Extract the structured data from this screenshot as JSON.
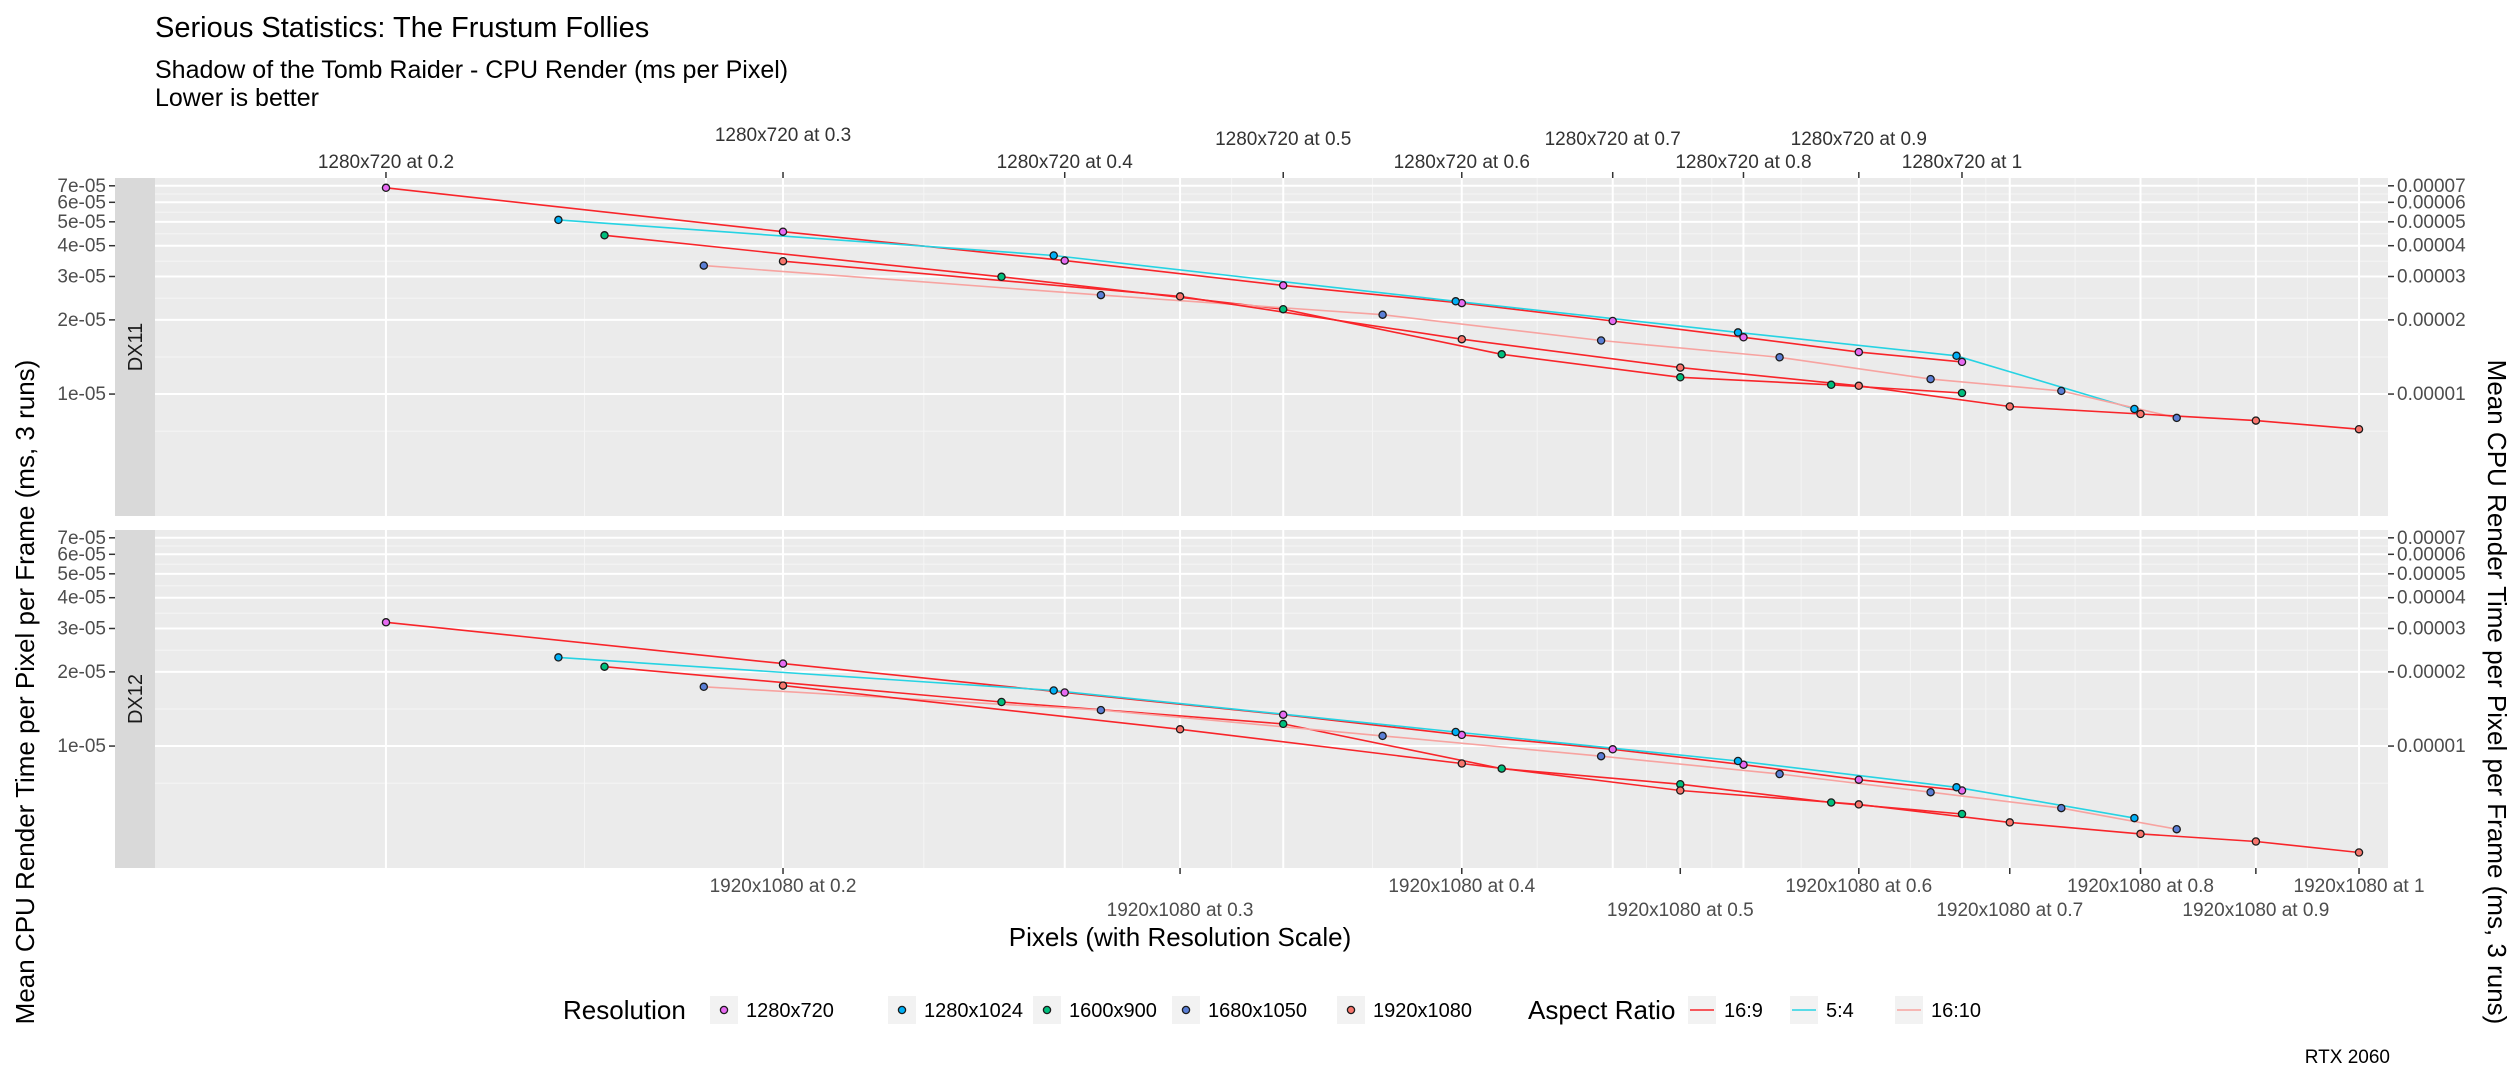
{
  "chart_data": {
    "type": "scatter",
    "title": "Serious Statistics: The Frustum Follies",
    "subtitle": [
      "Shadow of the Tomb Raider - CPU Render (ms per Pixel)",
      "Lower is better"
    ],
    "xlabel": "Pixels (with Resolution Scale)",
    "ylabel": "Mean CPU Render Time per Pixel per Frame (ms, 3 runs)",
    "ylabel_right": "Mean CPU Render Time per Pixel per Frame (ms, 3 runs)",
    "caption": "RTX 2060",
    "x_scale": "log",
    "y_scale": "log",
    "xlim": [
      23000,
      2200000
    ],
    "ylim": [
      3.2e-06,
      7.53e-05
    ],
    "y_ticks_left": [
      {
        "value": 7e-05,
        "label": "7e-05"
      },
      {
        "value": 6e-05,
        "label": "6e-05"
      },
      {
        "value": 5e-05,
        "label": "5e-05"
      },
      {
        "value": 4e-05,
        "label": "4e-05"
      },
      {
        "value": 3e-05,
        "label": "3e-05"
      },
      {
        "value": 2e-05,
        "label": "2e-05"
      },
      {
        "value": 1e-05,
        "label": "1e-05"
      }
    ],
    "y_ticks_right": [
      {
        "value": 7e-05,
        "label": "0.00007"
      },
      {
        "value": 6e-05,
        "label": "0.00006"
      },
      {
        "value": 5e-05,
        "label": "0.00005"
      },
      {
        "value": 4e-05,
        "label": "0.00004"
      },
      {
        "value": 3e-05,
        "label": "0.00003"
      },
      {
        "value": 2e-05,
        "label": "0.00002"
      },
      {
        "value": 1e-05,
        "label": "0.00001"
      }
    ],
    "x_ticks_top": [
      {
        "value": 36864,
        "label": "1280x720 at 0.2"
      },
      {
        "value": 82944,
        "label": "1280x720 at 0.3"
      },
      {
        "value": 147456,
        "label": "1280x720 at 0.4"
      },
      {
        "value": 230400,
        "label": "1280x720 at 0.5"
      },
      {
        "value": 331776,
        "label": "1280x720 at 0.6"
      },
      {
        "value": 451584,
        "label": "1280x720 at 0.7"
      },
      {
        "value": 589824,
        "label": "1280x720 at 0.8"
      },
      {
        "value": 746496,
        "label": "1280x720 at 0.9"
      },
      {
        "value": 921600,
        "label": "1280x720 at 1"
      }
    ],
    "x_ticks_bottom": [
      {
        "value": 82944,
        "label": "1920x1080 at 0.2"
      },
      {
        "value": 186624,
        "label": "1920x1080 at 0.3"
      },
      {
        "value": 331776,
        "label": "1920x1080 at 0.4"
      },
      {
        "value": 518400,
        "label": "1920x1080 at 0.5"
      },
      {
        "value": 746496,
        "label": "1920x1080 at 0.6"
      },
      {
        "value": 1016064,
        "label": "1920x1080 at 0.7"
      },
      {
        "value": 1327104,
        "label": "1920x1080 at 0.8"
      },
      {
        "value": 1679616,
        "label": "1920x1080 at 0.9"
      },
      {
        "value": 2073600,
        "label": "1920x1080 at 1"
      }
    ],
    "panels": [
      {
        "strip": "DX11",
        "points": [
          {
            "res": "1280x720",
            "x": 36864,
            "y": 6.87e-05
          },
          {
            "res": "1280x720",
            "x": 82944,
            "y": 4.56e-05
          },
          {
            "res": "1280x720",
            "x": 147456,
            "y": 3.48e-05
          },
          {
            "res": "1280x720",
            "x": 230400,
            "y": 2.76e-05
          },
          {
            "res": "1280x720",
            "x": 331776,
            "y": 2.34e-05
          },
          {
            "res": "1280x720",
            "x": 451584,
            "y": 1.98e-05
          },
          {
            "res": "1280x720",
            "x": 589824,
            "y": 1.7e-05
          },
          {
            "res": "1280x720",
            "x": 746496,
            "y": 1.48e-05
          },
          {
            "res": "1280x720",
            "x": 921600,
            "y": 1.35e-05
          },
          {
            "res": "1280x1024",
            "x": 52429,
            "y": 5.09e-05
          },
          {
            "res": "1280x1024",
            "x": 144179,
            "y": 3.65e-05
          },
          {
            "res": "1280x1024",
            "x": 327680,
            "y": 2.38e-05
          },
          {
            "res": "1280x1024",
            "x": 583270,
            "y": 1.78e-05
          },
          {
            "res": "1280x1024",
            "x": 911360,
            "y": 1.43e-05
          },
          {
            "res": "1280x1024",
            "x": 1310720,
            "y": 8.7e-06
          },
          {
            "res": "1600x900",
            "x": 57600,
            "y": 4.41e-05
          },
          {
            "res": "1600x900",
            "x": 129600,
            "y": 2.99e-05
          },
          {
            "res": "1600x900",
            "x": 230400,
            "y": 2.21e-05
          },
          {
            "res": "1600x900",
            "x": 360000,
            "y": 1.45e-05
          },
          {
            "res": "1600x900",
            "x": 518400,
            "y": 1.17e-05
          },
          {
            "res": "1600x900",
            "x": 705600,
            "y": 1.09e-05
          },
          {
            "res": "1600x900",
            "x": 921600,
            "y": 1.01e-05
          },
          {
            "res": "1680x1050",
            "x": 70560,
            "y": 3.32e-05
          },
          {
            "res": "1680x1050",
            "x": 158760,
            "y": 2.52e-05
          },
          {
            "res": "1680x1050",
            "x": 282240,
            "y": 2.1e-05
          },
          {
            "res": "1680x1050",
            "x": 440999,
            "y": 1.65e-05
          },
          {
            "res": "1680x1050",
            "x": 635040,
            "y": 1.41e-05
          },
          {
            "res": "1680x1050",
            "x": 864360,
            "y": 1.15e-05
          },
          {
            "res": "1680x1050",
            "x": 1128960,
            "y": 1.03e-05
          },
          {
            "res": "1680x1050",
            "x": 1428840,
            "y": 8e-06
          },
          {
            "res": "1920x1080",
            "x": 82944,
            "y": 3.46e-05
          },
          {
            "res": "1920x1080",
            "x": 186624,
            "y": 2.49e-05
          },
          {
            "res": "1920x1080",
            "x": 331776,
            "y": 1.67e-05
          },
          {
            "res": "1920x1080",
            "x": 518400,
            "y": 1.28e-05
          },
          {
            "res": "1920x1080",
            "x": 746496,
            "y": 1.08e-05
          },
          {
            "res": "1920x1080",
            "x": 1016064,
            "y": 8.9e-06
          },
          {
            "res": "1920x1080",
            "x": 1327104,
            "y": 8.3e-06
          },
          {
            "res": "1920x1080",
            "x": 1679616,
            "y": 7.8e-06
          },
          {
            "res": "1920x1080",
            "x": 2073600,
            "y": 7.2e-06
          }
        ]
      },
      {
        "strip": "DX12",
        "points": [
          {
            "res": "1280x720",
            "x": 36864,
            "y": 3.18e-05
          },
          {
            "res": "1280x720",
            "x": 82944,
            "y": 2.16e-05
          },
          {
            "res": "1280x720",
            "x": 147456,
            "y": 1.65e-05
          },
          {
            "res": "1280x720",
            "x": 230400,
            "y": 1.34e-05
          },
          {
            "res": "1280x720",
            "x": 331776,
            "y": 1.11e-05
          },
          {
            "res": "1280x720",
            "x": 451584,
            "y": 9.7e-06
          },
          {
            "res": "1280x720",
            "x": 589824,
            "y": 8.4e-06
          },
          {
            "res": "1280x720",
            "x": 746496,
            "y": 7.3e-06
          },
          {
            "res": "1280x720",
            "x": 921600,
            "y": 6.6e-06
          },
          {
            "res": "1280x1024",
            "x": 52429,
            "y": 2.29e-05
          },
          {
            "res": "1280x1024",
            "x": 144179,
            "y": 1.68e-05
          },
          {
            "res": "1280x1024",
            "x": 327680,
            "y": 1.14e-05
          },
          {
            "res": "1280x1024",
            "x": 583270,
            "y": 8.7e-06
          },
          {
            "res": "1280x1024",
            "x": 911360,
            "y": 6.8e-06
          },
          {
            "res": "1280x1024",
            "x": 1310720,
            "y": 5.1e-06
          },
          {
            "res": "1600x900",
            "x": 57600,
            "y": 2.1e-05
          },
          {
            "res": "1600x900",
            "x": 129600,
            "y": 1.51e-05
          },
          {
            "res": "1600x900",
            "x": 230400,
            "y": 1.23e-05
          },
          {
            "res": "1600x900",
            "x": 360000,
            "y": 8.1e-06
          },
          {
            "res": "1600x900",
            "x": 518400,
            "y": 7e-06
          },
          {
            "res": "1600x900",
            "x": 705600,
            "y": 5.9e-06
          },
          {
            "res": "1600x900",
            "x": 921600,
            "y": 5.3e-06
          },
          {
            "res": "1680x1050",
            "x": 70560,
            "y": 1.74e-05
          },
          {
            "res": "1680x1050",
            "x": 158760,
            "y": 1.4e-05
          },
          {
            "res": "1680x1050",
            "x": 282240,
            "y": 1.1e-05
          },
          {
            "res": "1680x1050",
            "x": 440999,
            "y": 9.1e-06
          },
          {
            "res": "1680x1050",
            "x": 635040,
            "y": 7.7e-06
          },
          {
            "res": "1680x1050",
            "x": 864360,
            "y": 6.5e-06
          },
          {
            "res": "1680x1050",
            "x": 1128960,
            "y": 5.6e-06
          },
          {
            "res": "1680x1050",
            "x": 1428840,
            "y": 4.6e-06
          },
          {
            "res": "1920x1080",
            "x": 82944,
            "y": 1.76e-05
          },
          {
            "res": "1920x1080",
            "x": 186624,
            "y": 1.17e-05
          },
          {
            "res": "1920x1080",
            "x": 331776,
            "y": 8.5e-06
          },
          {
            "res": "1920x1080",
            "x": 518400,
            "y": 6.6e-06
          },
          {
            "res": "1920x1080",
            "x": 746496,
            "y": 5.8e-06
          },
          {
            "res": "1920x1080",
            "x": 1016064,
            "y": 4.9e-06
          },
          {
            "res": "1920x1080",
            "x": 1327104,
            "y": 4.4e-06
          },
          {
            "res": "1920x1080",
            "x": 1679616,
            "y": 4.1e-06
          },
          {
            "res": "1920x1080",
            "x": 2073600,
            "y": 3.7e-06
          }
        ]
      }
    ],
    "lines": {
      "16:9": [
        "1280x720",
        "1600x900",
        "1920x1080"
      ],
      "5:4": [
        "1280x1024"
      ],
      "16:10": [
        "1680x1050"
      ]
    },
    "legend_resolution": {
      "title": "Resolution",
      "items": [
        {
          "label": "1280x720",
          "color": "#e76bf3"
        },
        {
          "label": "1280x1024",
          "color": "#00b0f6"
        },
        {
          "label": "1600x900",
          "color": "#00bf7d"
        },
        {
          "label": "1680x1050",
          "color": "#5b7fd6"
        },
        {
          "label": "1920x1080",
          "color": "#f8766d"
        }
      ]
    },
    "legend_aspect": {
      "title": "Aspect Ratio",
      "items": [
        {
          "label": "16:9",
          "color": "#f8252a"
        },
        {
          "label": "5:4",
          "color": "#26d3e3"
        },
        {
          "label": "16:10",
          "color": "#f7a3a0"
        }
      ]
    },
    "legend_placement": "bottom",
    "grid": true
  }
}
